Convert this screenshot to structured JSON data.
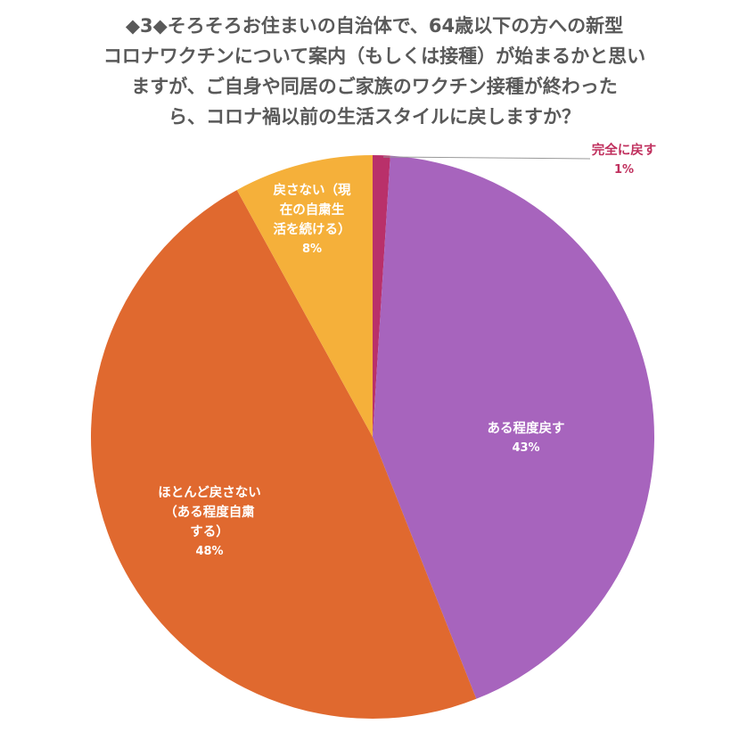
{
  "chart_data": {
    "type": "pie",
    "title": "◆3◆そろそろお住まいの自治体で、64歳以下の方への新型コロナワクチンについて案内（もしくは接種）が始まるかと思いますが、ご自身や同居のご家族のワクチン接種が終わったら、コロナ禍以前の生活スタイルに戻しますか？",
    "categories": [
      "完全に戻す",
      "ある程度戻す",
      "ほとんど戻さない（ある程度自粛する）",
      "戻さない（現在の自粛生活を続ける）"
    ],
    "values": [
      1,
      43,
      48,
      8
    ],
    "colors": [
      "#b9306a",
      "#a764bd",
      "#e0692f",
      "#f5b03a"
    ],
    "start_angle": "12 o'clock, clockwise",
    "legend": "none (data labels on slices)"
  },
  "title_lines": [
    "◆3◆そろそろお住まいの自治体で、64歳以下の方への新型",
    "コロナワクチンについて案内（もしくは接種）が始まるかと思い",
    "ますが、ご自身や同居のご家族のワクチン接種が終わった",
    "ら、コロナ禍以前の生活スタイルに戻しますか？"
  ],
  "labels": {
    "full": {
      "text": "完全に戻す",
      "pct": "1%"
    },
    "some": {
      "text": "ある程度戻す",
      "pct": "43%"
    },
    "hardly": {
      "line1": "ほとんど戻さない",
      "line2": "（ある程度自粛",
      "line3": "する）",
      "pct": "48%"
    },
    "not": {
      "line1": "戻さない（現",
      "line2": "在の自粛生",
      "line3": "活を続ける）",
      "pct": "8%"
    }
  }
}
